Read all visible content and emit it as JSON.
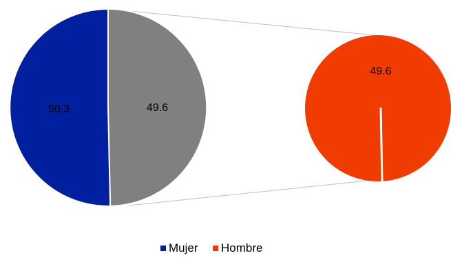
{
  "chart_data": {
    "type": "pie",
    "title": "",
    "main_pie": {
      "slices": [
        {
          "label": "50.3",
          "value": 50.3,
          "color": "#0020A0",
          "series": "Mujer"
        },
        {
          "label": "49.6",
          "value": 49.6,
          "color": "#808080",
          "series": "Hombre"
        }
      ]
    },
    "detail_pie": {
      "label": "49.6",
      "value": 49.6,
      "color": "#F03C00",
      "series": "Hombre",
      "note": ""
    },
    "legend": {
      "placement": "bottom",
      "entries": [
        {
          "name": "Mujer",
          "color": "#0020A0"
        },
        {
          "name": "Hombre",
          "color": "#F03C00"
        }
      ]
    }
  }
}
